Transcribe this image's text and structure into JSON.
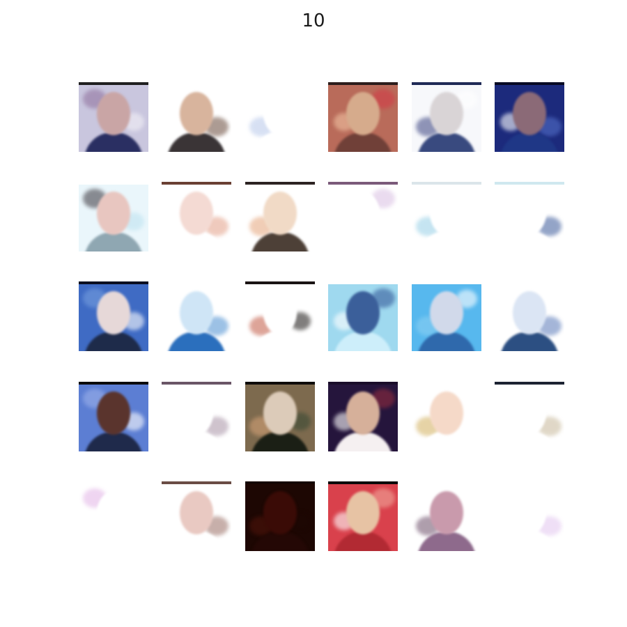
{
  "figure": {
    "title": "10",
    "grid": {
      "rows": 5,
      "cols": 6
    },
    "tiles": [
      {
        "bg": "#c9c6de",
        "top": "#202020",
        "face": "#c9a5a5",
        "body": "#2a2f62",
        "accents": [
          "#8d6d9a",
          "#f3f1f7"
        ]
      },
      {
        "bg": "#ffffff",
        "top": "#ffffff",
        "face": "#d8b49d",
        "body": "#3a3436",
        "accents": [
          "#6a4b3c",
          "#ffffff"
        ]
      },
      {
        "bg": "#ffffff",
        "top": "#ffffff",
        "face": "#ffffff",
        "body": "#ffffff",
        "accents": [
          "#b7c8ea",
          "#ffffff"
        ]
      },
      {
        "bg": "#b96b5a",
        "top": "#2c1d1c",
        "face": "#d6ab8c",
        "body": "#704038",
        "accents": [
          "#d43745",
          "#f0c2a2"
        ]
      },
      {
        "bg": "#f7f8fb",
        "top": "#1f2a56",
        "face": "#d9d4d6",
        "body": "#394a7f",
        "accents": [
          "#39427f",
          "#ffffff"
        ]
      },
      {
        "bg": "#1c2a7c",
        "top": "#080a24",
        "face": "#8b6a77",
        "body": "#1f3786",
        "accents": [
          "#5775cf",
          "#ffffff"
        ]
      },
      {
        "bg": "#eaf6fb",
        "top": "#ffffff",
        "face": "#e8c6c0",
        "body": "#8fa7b2",
        "accents": [
          "#38333b",
          "#bfe3f0"
        ]
      },
      {
        "bg": "#ffffff",
        "top": "#6a4033",
        "face": "#f4dad3",
        "body": "#ffffff",
        "accents": [
          "#e3a088",
          "#ffffff"
        ]
      },
      {
        "bg": "#ffffff",
        "top": "#2d2322",
        "face": "#f1dac6",
        "body": "#4d4037",
        "accents": [
          "#e5a57b",
          "#ffffff"
        ]
      },
      {
        "bg": "#ffffff",
        "top": "#7b5a7a",
        "face": "#ffffff",
        "body": "#ffffff",
        "accents": [
          "#d9bfe2",
          "#ffffff"
        ]
      },
      {
        "bg": "#ffffff",
        "top": "#dbe5ea",
        "face": "#ffffff",
        "body": "#ffffff",
        "accents": [
          "#96cfe6",
          "#ffffff"
        ]
      },
      {
        "bg": "#ffffff",
        "top": "#cfe8ef",
        "face": "#ffffff",
        "body": "#ffffff",
        "accents": [
          "#3c5a9a",
          "#ffffff"
        ]
      },
      {
        "bg": "#3f6bc4",
        "top": "#0b0f20",
        "face": "#e6d8d8",
        "body": "#1e2b4a",
        "accents": [
          "#7aa2e0",
          "#ffffff"
        ]
      },
      {
        "bg": "#ffffff",
        "top": "#ffffff",
        "face": "#cfe5f6",
        "body": "#2b6fbd",
        "accents": [
          "#4c8fd1",
          "#ffffff"
        ]
      },
      {
        "bg": "#ffffff",
        "top": "#1a1414",
        "face": "#ffffff",
        "body": "#ffffff",
        "accents": [
          "#c25a45",
          "#2d2a28"
        ]
      },
      {
        "bg": "#9fd9ef",
        "top": "#ffffff",
        "face": "#3b5f9a",
        "body": "#cdeefa",
        "accents": [
          "#2c4f92",
          "#ffffff"
        ]
      },
      {
        "bg": "#57b8ee",
        "top": "#ffffff",
        "face": "#d1d9ea",
        "body": "#2f69ac",
        "accents": [
          "#8fd1f2",
          "#ffffff"
        ]
      },
      {
        "bg": "#ffffff",
        "top": "#ffffff",
        "face": "#dbe5f4",
        "body": "#2c4f82",
        "accents": [
          "#5a7ab9",
          "#ffffff"
        ]
      },
      {
        "bg": "#5c7ed3",
        "top": "#0b0b0b",
        "face": "#5a342d",
        "body": "#1f2a4b",
        "accents": [
          "#a1b5ec",
          "#ffffff"
        ]
      },
      {
        "bg": "#ffffff",
        "top": "#6a5567",
        "face": "#ffffff",
        "body": "#ffffff",
        "accents": [
          "#a893a6",
          "#ffffff"
        ]
      },
      {
        "bg": "#7d6a4e",
        "top": "#0e0c0a",
        "face": "#dccbb9",
        "body": "#1b1f15",
        "accents": [
          "#dba67a",
          "#3a4a35"
        ]
      },
      {
        "bg": "#25153c",
        "top": "#1a0d2a",
        "face": "#d6b09a",
        "body": "#f5f0f1",
        "accents": [
          "#9c2e3f",
          "#ffffff"
        ]
      },
      {
        "bg": "#ffffff",
        "top": "#ffffff",
        "face": "#f5d9c8",
        "body": "#ffffff",
        "accents": [
          "#d2b05e",
          "#ffffff"
        ]
      },
      {
        "bg": "#ffffff",
        "top": "#1c2332",
        "face": "#ffffff",
        "body": "#ffffff",
        "accents": [
          "#c7b89a",
          "#ffffff"
        ]
      },
      {
        "bg": "#ffffff",
        "top": "#ffffff",
        "face": "#ffffff",
        "body": "#ffffff",
        "accents": [
          "#e2b3e6",
          "#ffffff"
        ]
      },
      {
        "bg": "#ffffff",
        "top": "#6a4c45",
        "face": "#e9c9c2",
        "body": "#ffffff",
        "accents": [
          "#9a6f66",
          "#ffffff"
        ]
      },
      {
        "bg": "#1d0703",
        "top": "#150502",
        "face": "#3a0b06",
        "body": "#240805",
        "accents": [
          "#52140b",
          "#1d0703"
        ]
      },
      {
        "bg": "#d9414c",
        "top": "#0c0a0a",
        "face": "#e7c3a4",
        "body": "#b22a33",
        "accents": [
          "#f3b1a2",
          "#ffffff"
        ]
      },
      {
        "bg": "#ffffff",
        "top": "#ffffff",
        "face": "#c99aac",
        "body": "#8e6a8c",
        "accents": [
          "#6d4f6a",
          "#ffffff"
        ]
      },
      {
        "bg": "#ffffff",
        "top": "#ffffff",
        "face": "#ffffff",
        "body": "#ffffff",
        "accents": [
          "#e2c5ef",
          "#ffffff"
        ]
      }
    ]
  }
}
